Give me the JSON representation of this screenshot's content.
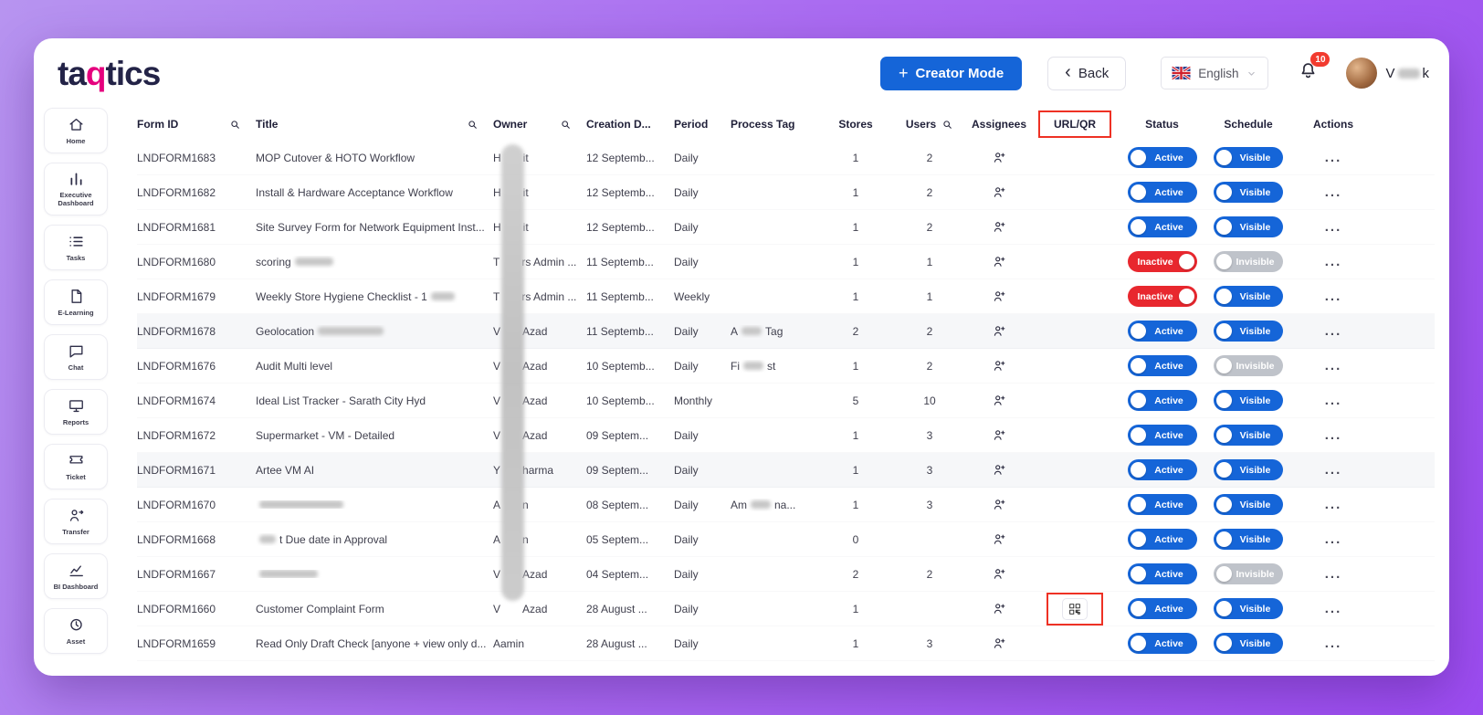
{
  "colors": {
    "primary_blue": "#1565d8",
    "danger_red": "#e8272e",
    "toggle_off_gray": "#bfc3ca",
    "annotation_red": "#ee3124",
    "badge_red": "#f23b2f",
    "logo_navy": "#232347",
    "logo_accent": "#e5007e"
  },
  "logo": {
    "part1": "ta",
    "part2": "q",
    "part3": "tics"
  },
  "header": {
    "creator_mode_label": "Creator Mode",
    "back_label": "Back",
    "language": "English",
    "notification_count": "10",
    "user_name_pre": "V",
    "user_name_post": "k"
  },
  "sidebar": {
    "items": [
      {
        "key": "home",
        "label": "Home",
        "icon": "home-icon"
      },
      {
        "key": "executive-dashboard",
        "label": "Executive Dashboard",
        "icon": "bar-chart-icon"
      },
      {
        "key": "tasks",
        "label": "Tasks",
        "icon": "task-list-icon"
      },
      {
        "key": "e-learning",
        "label": "E-Learning",
        "icon": "document-icon"
      },
      {
        "key": "chat",
        "label": "Chat",
        "icon": "chat-bubble-icon"
      },
      {
        "key": "reports",
        "label": "Reports",
        "icon": "monitor-icon"
      },
      {
        "key": "ticket",
        "label": "Ticket",
        "icon": "ticket-icon"
      },
      {
        "key": "transfer",
        "label": "Transfer",
        "icon": "person-share-icon"
      },
      {
        "key": "bi-dashboard",
        "label": "BI Dashboard",
        "icon": "trend-chart-icon"
      },
      {
        "key": "asset",
        "label": "Asset",
        "icon": "asset-icon"
      }
    ]
  },
  "table": {
    "columns": [
      {
        "key": "form-id",
        "label": "Form ID",
        "search": true
      },
      {
        "key": "title",
        "label": "Title",
        "search": true
      },
      {
        "key": "owner",
        "label": "Owner",
        "search": true
      },
      {
        "key": "creation-date",
        "label": "Creation D..."
      },
      {
        "key": "period",
        "label": "Period"
      },
      {
        "key": "process-tag",
        "label": "Process Tag"
      },
      {
        "key": "stores",
        "label": "Stores",
        "center": true
      },
      {
        "key": "users",
        "label": "Users",
        "search": true,
        "center": true
      },
      {
        "key": "assignees",
        "label": "Assignees",
        "center": true
      },
      {
        "key": "url-qr",
        "label": "URL/QR",
        "center": true,
        "annotated": true
      },
      {
        "key": "status",
        "label": "Status",
        "center": true
      },
      {
        "key": "schedule",
        "label": "Schedule",
        "center": true
      },
      {
        "key": "actions",
        "label": "Actions",
        "center": true
      }
    ],
    "row_actions_label": "...",
    "rows": [
      {
        "form_id": "LNDFORM1683",
        "title": "MOP Cutover & HOTO Workflow",
        "owner_pre": "H",
        "owner_post": "it",
        "creation": "12 Septemb...",
        "period": "Daily",
        "stores": "1",
        "users": "2",
        "status": "Active",
        "schedule": "Visible"
      },
      {
        "form_id": "LNDFORM1682",
        "title": "Install & Hardware Acceptance Workflow",
        "owner_pre": "H",
        "owner_post": "it",
        "creation": "12 Septemb...",
        "period": "Daily",
        "stores": "1",
        "users": "2",
        "status": "Active",
        "schedule": "Visible"
      },
      {
        "form_id": "LNDFORM1681",
        "title": "Site Survey Form for Network Equipment Inst...",
        "owner_pre": "H",
        "owner_post": "it",
        "creation": "12 Septemb...",
        "period": "Daily",
        "stores": "1",
        "users": "2",
        "status": "Active",
        "schedule": "Visible"
      },
      {
        "form_id": "LNDFORM1680",
        "title": "scoring",
        "blur_after": 42,
        "owner_pre": "T",
        "owner_post": "rs Admin ...",
        "creation": "11 Septemb...",
        "period": "Daily",
        "stores": "1",
        "users": "1",
        "status": "Inactive",
        "schedule": "Invisible"
      },
      {
        "form_id": "LNDFORM1679",
        "title": "Weekly Store Hygiene Checklist - 1",
        "blur_after": 26,
        "owner_pre": "T",
        "owner_post": "rs Admin ...",
        "creation": "11 Septemb...",
        "period": "Weekly",
        "stores": "1",
        "users": "1",
        "status": "Inactive",
        "schedule": "Visible"
      },
      {
        "form_id": "LNDFORM1678",
        "title": "Geolocation",
        "blur_after": 72,
        "owner_pre": "V",
        "owner_post": "Azad",
        "creation": "11 Septemb...",
        "period": "Daily",
        "tag_pre": "A",
        "tag_post": "Tag",
        "stores": "2",
        "users": "2",
        "status": "Active",
        "schedule": "Visible",
        "shaded": true
      },
      {
        "form_id": "LNDFORM1676",
        "title": "Audit Multi level",
        "owner_pre": "V",
        "owner_post": "Azad",
        "creation": "10 Septemb...",
        "period": "Daily",
        "tag_pre": "Fi",
        "tag_post": "st",
        "stores": "1",
        "users": "2",
        "status": "Active",
        "schedule": "Invisible"
      },
      {
        "form_id": "LNDFORM1674",
        "title": "Ideal List Tracker - Sarath City Hyd",
        "owner_pre": "V",
        "owner_post": "Azad",
        "creation": "10 Septemb...",
        "period": "Monthly",
        "stores": "5",
        "users": "10",
        "status": "Active",
        "schedule": "Visible"
      },
      {
        "form_id": "LNDFORM1672",
        "title": "Supermarket - VM - Detailed",
        "owner_pre": "V",
        "owner_post": "Azad",
        "creation": "09 Septem...",
        "period": "Daily",
        "stores": "1",
        "users": "3",
        "status": "Active",
        "schedule": "Visible"
      },
      {
        "form_id": "LNDFORM1671",
        "title": "Artee VM AI",
        "owner_pre": "Y",
        "owner_post": "harma",
        "creation": "09 Septem...",
        "period": "Daily",
        "stores": "1",
        "users": "3",
        "status": "Active",
        "schedule": "Visible",
        "shaded": true
      },
      {
        "form_id": "LNDFORM1670",
        "title": "",
        "blur_after": 92,
        "owner_pre": "A",
        "owner_post": "n",
        "creation": "08 Septem...",
        "period": "Daily",
        "tag_pre": "Am",
        "tag_post": "na...",
        "stores": "1",
        "users": "3",
        "status": "Active",
        "schedule": "Visible"
      },
      {
        "form_id": "LNDFORM1668",
        "title": "t Due date in Approval",
        "blur_before": 18,
        "owner_pre": "A",
        "owner_post": "n",
        "creation": "05 Septem...",
        "period": "Daily",
        "stores": "0",
        "users": "",
        "status": "Active",
        "schedule": "Visible"
      },
      {
        "form_id": "LNDFORM1667",
        "title": "",
        "blur_after": 64,
        "owner_pre": "V",
        "owner_post": "Azad",
        "creation": "04 Septem...",
        "period": "Daily",
        "stores": "2",
        "users": "2",
        "status": "Active",
        "schedule": "Invisible"
      },
      {
        "form_id": "LNDFORM1660",
        "title": "Customer Complaint Form",
        "owner_pre": "V",
        "owner_post": "Azad",
        "creation": "28 August ...",
        "period": "Daily",
        "stores": "1",
        "users": "",
        "qr": true,
        "status": "Active",
        "schedule": "Visible"
      },
      {
        "form_id": "LNDFORM1659",
        "title": "Read Only Draft Check [anyone + view only d...",
        "owner_pre": "Aamin",
        "owner_post": "",
        "creation": "28 August ...",
        "period": "Daily",
        "stores": "1",
        "users": "3",
        "status": "Active",
        "schedule": "Visible"
      }
    ]
  }
}
